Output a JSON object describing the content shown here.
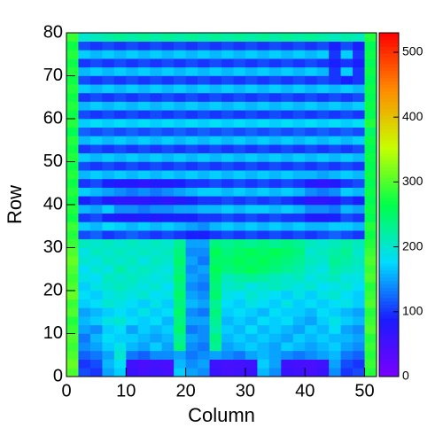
{
  "chart_data": {
    "type": "heatmap",
    "x_label": "Column",
    "y_label": "Row",
    "xlim": [
      0,
      52
    ],
    "ylim": [
      0,
      80
    ],
    "zlim": [
      0,
      530
    ],
    "xticks": [
      0,
      10,
      20,
      30,
      40,
      50
    ],
    "yticks": [
      0,
      10,
      20,
      30,
      40,
      50,
      60,
      70,
      80
    ],
    "zticks": [
      0,
      100,
      200,
      300,
      400,
      500
    ],
    "palette": [
      "#7b00ff",
      "#1b1bff",
      "#00ddff",
      "#00ff4a",
      "#c8ff00",
      "#ff8c00",
      "#ff0000"
    ],
    "z": [
      [
        300,
        110,
        100,
        150,
        170,
        60,
        50,
        55,
        50,
        170,
        150,
        140,
        60,
        50,
        55,
        60,
        160,
        140,
        60,
        55,
        50,
        60,
        140,
        100,
        110,
        280
      ],
      [
        310,
        100,
        110,
        160,
        180,
        55,
        45,
        50,
        45,
        160,
        140,
        150,
        55,
        50,
        50,
        55,
        170,
        150,
        55,
        50,
        45,
        55,
        150,
        110,
        100,
        290
      ],
      [
        300,
        120,
        130,
        150,
        200,
        130,
        120,
        140,
        140,
        150,
        130,
        140,
        150,
        140,
        130,
        150,
        160,
        150,
        140,
        130,
        140,
        150,
        160,
        130,
        120,
        280
      ],
      [
        290,
        140,
        150,
        170,
        190,
        160,
        150,
        170,
        150,
        240,
        140,
        130,
        230,
        150,
        160,
        170,
        160,
        150,
        170,
        160,
        150,
        160,
        170,
        150,
        140,
        290
      ],
      [
        300,
        130,
        160,
        180,
        170,
        170,
        160,
        150,
        160,
        230,
        150,
        140,
        240,
        160,
        170,
        160,
        170,
        160,
        150,
        170,
        160,
        170,
        160,
        160,
        150,
        280
      ],
      [
        290,
        150,
        140,
        170,
        180,
        150,
        170,
        160,
        170,
        250,
        130,
        140,
        220,
        170,
        160,
        180,
        160,
        170,
        160,
        150,
        170,
        160,
        180,
        150,
        140,
        300
      ],
      [
        280,
        160,
        170,
        190,
        200,
        180,
        170,
        180,
        160,
        240,
        150,
        150,
        230,
        160,
        170,
        160,
        180,
        170,
        180,
        160,
        150,
        170,
        190,
        170,
        160,
        290
      ],
      [
        300,
        150,
        160,
        170,
        180,
        170,
        190,
        170,
        180,
        250,
        140,
        130,
        240,
        170,
        180,
        170,
        160,
        180,
        170,
        170,
        160,
        180,
        170,
        160,
        150,
        280
      ],
      [
        290,
        170,
        180,
        200,
        190,
        180,
        170,
        190,
        170,
        240,
        160,
        150,
        230,
        180,
        170,
        190,
        180,
        170,
        190,
        170,
        180,
        170,
        180,
        190,
        170,
        300
      ],
      [
        310,
        180,
        170,
        190,
        200,
        190,
        200,
        180,
        190,
        250,
        150,
        140,
        250,
        190,
        180,
        200,
        190,
        180,
        170,
        190,
        170,
        190,
        200,
        180,
        170,
        290
      ],
      [
        300,
        170,
        190,
        200,
        210,
        200,
        190,
        200,
        180,
        240,
        140,
        130,
        240,
        200,
        210,
        190,
        200,
        210,
        200,
        190,
        200,
        180,
        190,
        200,
        180,
        280
      ],
      [
        290,
        190,
        180,
        210,
        200,
        210,
        200,
        190,
        200,
        250,
        150,
        140,
        250,
        210,
        220,
        230,
        220,
        210,
        200,
        210,
        190,
        200,
        210,
        190,
        190,
        300
      ],
      [
        300,
        180,
        200,
        190,
        220,
        200,
        210,
        200,
        190,
        240,
        140,
        150,
        260,
        240,
        250,
        260,
        250,
        240,
        230,
        220,
        200,
        190,
        220,
        210,
        200,
        290
      ],
      [
        310,
        200,
        190,
        210,
        200,
        210,
        190,
        210,
        200,
        250,
        150,
        130,
        250,
        250,
        260,
        250,
        260,
        250,
        240,
        230,
        210,
        200,
        230,
        220,
        210,
        300
      ],
      [
        300,
        190,
        210,
        200,
        210,
        200,
        210,
        200,
        210,
        240,
        140,
        140,
        260,
        240,
        250,
        260,
        250,
        260,
        250,
        240,
        200,
        210,
        220,
        230,
        200,
        290
      ],
      [
        290,
        210,
        200,
        210,
        200,
        210,
        200,
        210,
        200,
        230,
        150,
        150,
        240,
        230,
        240,
        230,
        240,
        230,
        240,
        230,
        210,
        200,
        210,
        220,
        210,
        280
      ],
      [
        280,
        110,
        120,
        100,
        110,
        120,
        110,
        100,
        110,
        100,
        90,
        90,
        100,
        110,
        100,
        110,
        100,
        110,
        100,
        110,
        100,
        110,
        120,
        110,
        100,
        270
      ],
      [
        290,
        170,
        160,
        180,
        170,
        160,
        170,
        160,
        170,
        160,
        150,
        140,
        160,
        170,
        160,
        170,
        160,
        170,
        160,
        170,
        160,
        160,
        170,
        170,
        160,
        280
      ],
      [
        270,
        100,
        110,
        90,
        80,
        80,
        90,
        80,
        90,
        90,
        90,
        100,
        100,
        110,
        100,
        110,
        100,
        110,
        100,
        100,
        80,
        80,
        90,
        110,
        100,
        260
      ],
      [
        280,
        160,
        150,
        170,
        140,
        140,
        130,
        140,
        140,
        150,
        150,
        160,
        160,
        170,
        160,
        170,
        170,
        160,
        170,
        160,
        140,
        140,
        130,
        160,
        150,
        270
      ],
      [
        270,
        90,
        100,
        80,
        70,
        70,
        70,
        80,
        70,
        80,
        90,
        100,
        100,
        110,
        100,
        110,
        100,
        110,
        100,
        90,
        70,
        70,
        80,
        100,
        90,
        260
      ],
      [
        280,
        170,
        160,
        150,
        140,
        130,
        140,
        130,
        140,
        150,
        160,
        170,
        170,
        160,
        170,
        160,
        170,
        160,
        170,
        160,
        140,
        130,
        140,
        170,
        160,
        270
      ],
      [
        270,
        100,
        110,
        90,
        80,
        80,
        70,
        80,
        80,
        90,
        100,
        100,
        110,
        100,
        110,
        100,
        110,
        100,
        110,
        100,
        80,
        70,
        80,
        100,
        110,
        260
      ],
      [
        280,
        160,
        170,
        160,
        170,
        160,
        170,
        160,
        170,
        160,
        170,
        160,
        170,
        160,
        170,
        160,
        170,
        160,
        170,
        160,
        160,
        150,
        160,
        170,
        160,
        270
      ],
      [
        270,
        110,
        100,
        110,
        100,
        110,
        100,
        110,
        100,
        110,
        100,
        110,
        100,
        110,
        100,
        110,
        100,
        110,
        100,
        110,
        100,
        110,
        100,
        110,
        100,
        260
      ],
      [
        280,
        170,
        160,
        170,
        160,
        170,
        160,
        170,
        160,
        170,
        160,
        170,
        160,
        170,
        160,
        170,
        160,
        170,
        160,
        170,
        160,
        170,
        160,
        170,
        160,
        270
      ],
      [
        270,
        100,
        110,
        100,
        110,
        100,
        110,
        100,
        110,
        100,
        110,
        100,
        110,
        100,
        110,
        100,
        110,
        100,
        110,
        100,
        110,
        100,
        110,
        100,
        110,
        260
      ],
      [
        280,
        160,
        170,
        160,
        170,
        160,
        170,
        160,
        170,
        160,
        170,
        160,
        170,
        160,
        170,
        160,
        170,
        160,
        170,
        160,
        170,
        160,
        170,
        160,
        170,
        270
      ],
      [
        260,
        120,
        110,
        120,
        110,
        120,
        110,
        120,
        110,
        120,
        110,
        120,
        110,
        120,
        110,
        120,
        110,
        120,
        110,
        120,
        110,
        120,
        110,
        120,
        110,
        250
      ],
      [
        280,
        170,
        180,
        170,
        180,
        170,
        180,
        170,
        180,
        170,
        180,
        170,
        180,
        170,
        180,
        170,
        180,
        170,
        180,
        170,
        180,
        170,
        180,
        170,
        180,
        280
      ],
      [
        270,
        110,
        100,
        110,
        100,
        110,
        100,
        110,
        100,
        110,
        100,
        110,
        100,
        110,
        100,
        110,
        100,
        110,
        100,
        110,
        100,
        110,
        100,
        110,
        100,
        260
      ],
      [
        280,
        160,
        170,
        160,
        170,
        160,
        170,
        160,
        170,
        160,
        170,
        160,
        170,
        160,
        170,
        160,
        170,
        160,
        170,
        160,
        170,
        160,
        170,
        160,
        170,
        270
      ],
      [
        270,
        100,
        110,
        100,
        110,
        100,
        110,
        100,
        110,
        100,
        110,
        100,
        110,
        100,
        110,
        100,
        110,
        100,
        110,
        100,
        110,
        100,
        110,
        100,
        110,
        260
      ],
      [
        280,
        170,
        160,
        170,
        160,
        170,
        160,
        170,
        160,
        170,
        160,
        170,
        160,
        170,
        160,
        170,
        160,
        170,
        160,
        170,
        160,
        170,
        160,
        170,
        160,
        270
      ],
      [
        270,
        110,
        100,
        110,
        100,
        110,
        100,
        110,
        100,
        110,
        100,
        110,
        100,
        110,
        100,
        110,
        100,
        110,
        100,
        110,
        100,
        110,
        100,
        90,
        100,
        260
      ],
      [
        280,
        160,
        170,
        160,
        170,
        160,
        170,
        160,
        170,
        160,
        170,
        160,
        170,
        160,
        170,
        160,
        170,
        160,
        170,
        160,
        170,
        160,
        100,
        170,
        100,
        270
      ],
      [
        270,
        100,
        110,
        100,
        110,
        100,
        110,
        100,
        110,
        100,
        110,
        100,
        110,
        100,
        110,
        100,
        110,
        100,
        110,
        100,
        110,
        100,
        90,
        100,
        90,
        260
      ],
      [
        280,
        170,
        160,
        170,
        160,
        170,
        160,
        170,
        160,
        170,
        160,
        170,
        160,
        170,
        160,
        170,
        160,
        170,
        160,
        170,
        160,
        170,
        100,
        170,
        100,
        270
      ],
      [
        270,
        110,
        100,
        110,
        100,
        110,
        100,
        110,
        100,
        110,
        100,
        110,
        100,
        110,
        100,
        110,
        100,
        110,
        100,
        110,
        100,
        110,
        90,
        110,
        90,
        260
      ],
      [
        290,
        200,
        210,
        220,
        230,
        220,
        230,
        220,
        230,
        220,
        230,
        220,
        230,
        220,
        230,
        220,
        230,
        220,
        230,
        220,
        230,
        220,
        210,
        220,
        210,
        280
      ]
    ]
  }
}
